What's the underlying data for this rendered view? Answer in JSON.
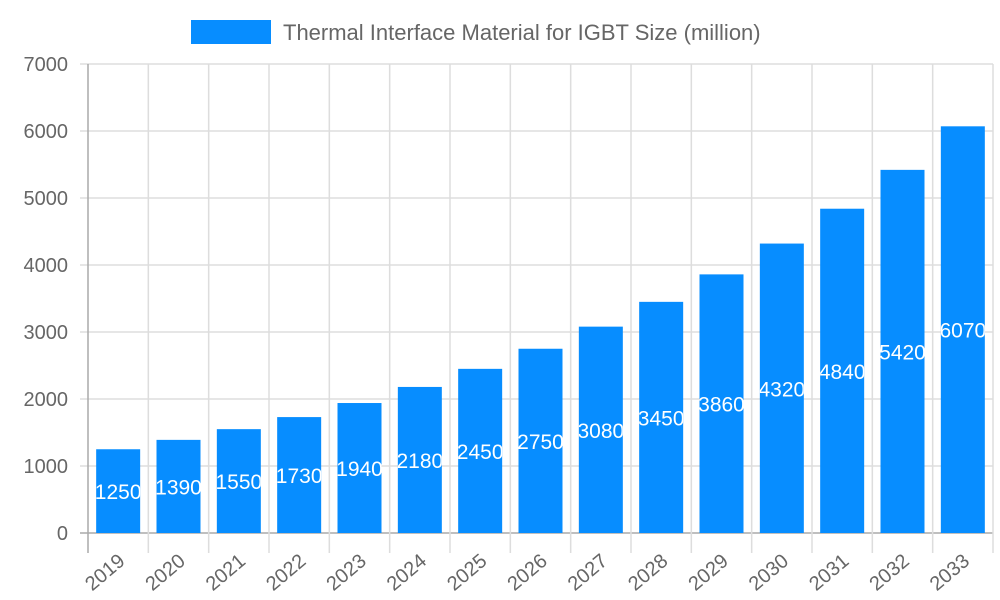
{
  "chart_data": {
    "type": "bar",
    "title": "",
    "xlabel": "",
    "ylabel": "",
    "categories": [
      "2019",
      "2020",
      "2021",
      "2022",
      "2023",
      "2024",
      "2025",
      "2026",
      "2027",
      "2028",
      "2029",
      "2030",
      "2031",
      "2032",
      "2033"
    ],
    "series": [
      {
        "name": "Thermal Interface Material for IGBT Size (million)",
        "values": [
          1250,
          1390,
          1550,
          1730,
          1940,
          2180,
          2450,
          2750,
          3080,
          3450,
          3860,
          4320,
          4840,
          5420,
          6070
        ]
      }
    ],
    "ylim": [
      0,
      7000
    ],
    "yticks": [
      0,
      1000,
      2000,
      3000,
      4000,
      5000,
      6000,
      7000
    ],
    "grid": true,
    "legend": "top-center",
    "data_labels": "inside-center",
    "colors": {
      "bar": "#078DFF",
      "grid": "#dddddd",
      "axis": "#aaaaaa",
      "text": "#666666",
      "label": "#ffffff"
    }
  }
}
